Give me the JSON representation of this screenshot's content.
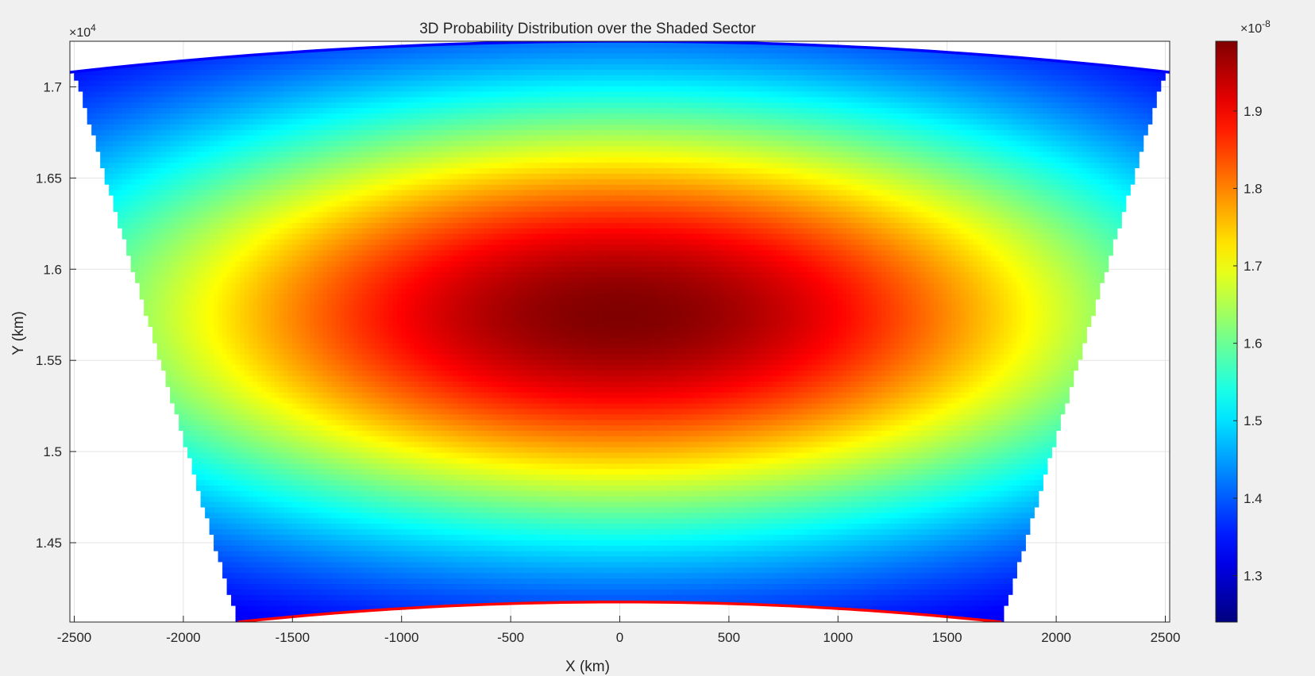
{
  "chart_data": {
    "type": "heatmap",
    "title": "3D Probability Distribution over the Shaded Sector",
    "xlabel": "X (km)",
    "ylabel": "Y (km)",
    "xlim": [
      -2520,
      2520
    ],
    "ylim": [
      14065,
      17250
    ],
    "x_ticks": [
      -2500,
      -2000,
      -1500,
      -1000,
      -500,
      0,
      500,
      1000,
      1500,
      2000,
      2500
    ],
    "y_ticks": [
      14500,
      15000,
      15500,
      16000,
      16500,
      17000
    ],
    "y_tick_labels": [
      "1.45",
      "1.5",
      "1.55",
      "1.6",
      "1.65",
      "1.7"
    ],
    "y_exponent_label": "×10",
    "y_exponent_power": "4",
    "grid": true,
    "colormap": "jet",
    "colorbar": {
      "range": [
        1.24e-08,
        1.99e-08
      ],
      "ticks": [
        1.3e-08,
        1.4e-08,
        1.5e-08,
        1.6e-08,
        1.7e-08,
        1.8e-08,
        1.9e-08
      ],
      "tick_labels": [
        "1.3",
        "1.4",
        "1.5",
        "1.6",
        "1.7",
        "1.8",
        "1.9"
      ],
      "exponent_label": "×10",
      "exponent_power": "-8"
    },
    "distribution": {
      "peak_value": 1.99e-08,
      "peak_x": 0,
      "peak_y": 15750,
      "sigma_x": 2450,
      "sigma_y": 1120,
      "floor_value": 1.24e-08
    },
    "sector": {
      "top_edge": {
        "x": [
          -2520,
          0,
          2520
        ],
        "y": [
          17080,
          17250,
          17080
        ]
      },
      "bottom_edge": {
        "x": [
          -1750,
          0,
          1750
        ],
        "y": [
          14065,
          14175,
          14065
        ]
      },
      "fill_top_left_x": -2500,
      "fill_bottom_left_x": -1750
    },
    "boundary_lines": [
      {
        "name": "outer arc",
        "color": "#0000ff"
      },
      {
        "name": "inner arc",
        "color": "#ff0000"
      }
    ]
  }
}
